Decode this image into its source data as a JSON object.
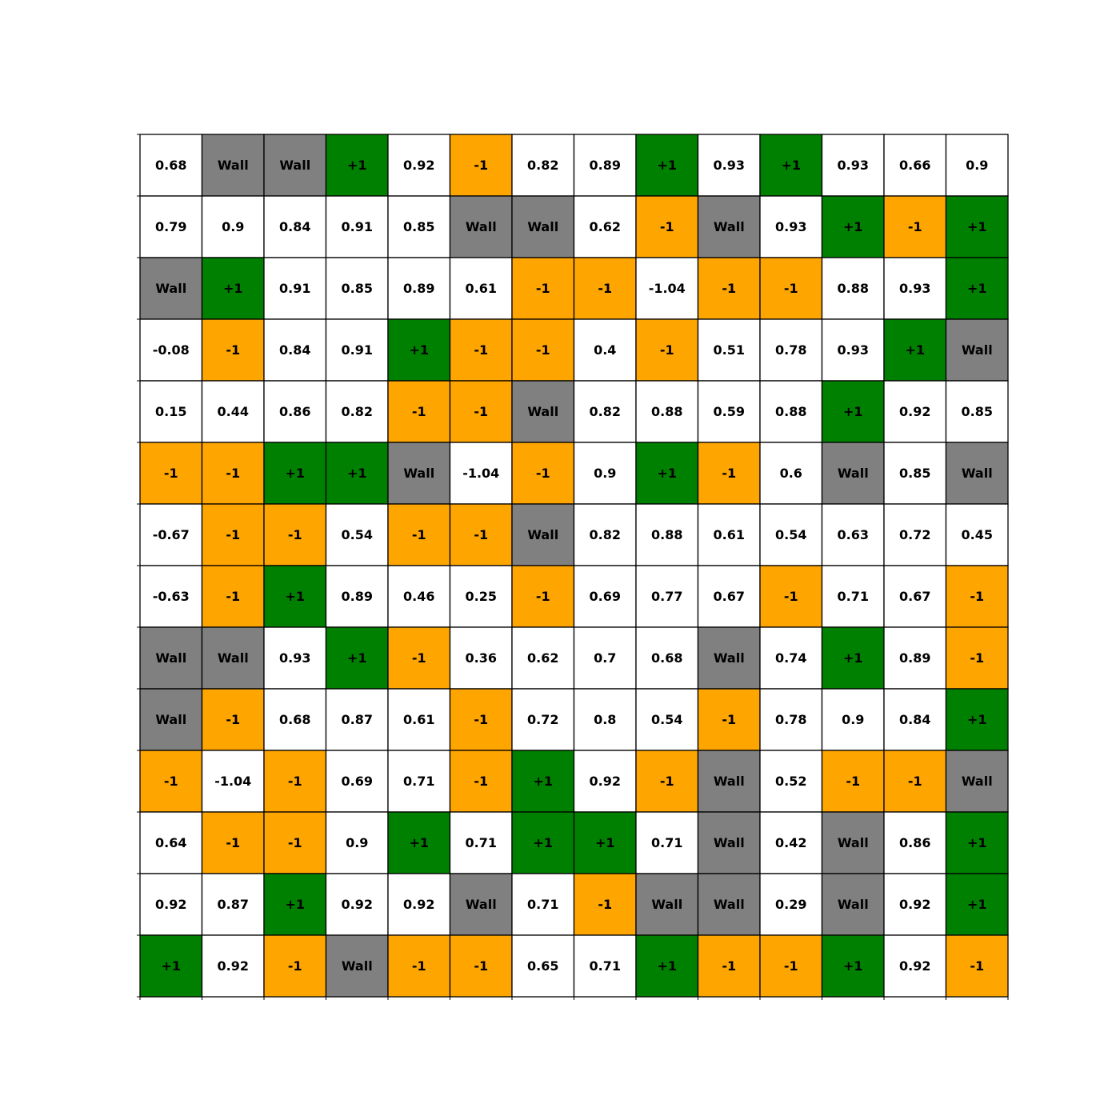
{
  "chart_data": {
    "type": "table",
    "colors": {
      "value": "#ffffff",
      "wall": "#808080",
      "goal": "#008000",
      "penalty": "#ffa500",
      "grid_line": "#000000"
    },
    "cells": [
      [
        "0.68",
        "Wall",
        "Wall",
        "+1",
        "0.92",
        "-1",
        "0.82",
        "0.89",
        "+1",
        "0.93",
        "+1",
        "0.93",
        "0.66",
        "0.9"
      ],
      [
        "0.79",
        "0.9",
        "0.84",
        "0.91",
        "0.85",
        "Wall",
        "Wall",
        "0.62",
        "-1",
        "Wall",
        "0.93",
        "+1",
        "-1",
        "+1"
      ],
      [
        "Wall",
        "+1",
        "0.91",
        "0.85",
        "0.89",
        "0.61",
        "-1",
        "-1",
        "-1.04",
        "-1",
        "-1",
        "0.88",
        "0.93",
        "+1"
      ],
      [
        "-0.08",
        "-1",
        "0.84",
        "0.91",
        "+1",
        "-1",
        "-1",
        "0.4",
        "-1",
        "0.51",
        "0.78",
        "0.93",
        "+1",
        "Wall"
      ],
      [
        "0.15",
        "0.44",
        "0.86",
        "0.82",
        "-1",
        "-1",
        "Wall",
        "0.82",
        "0.88",
        "0.59",
        "0.88",
        "+1",
        "0.92",
        "0.85"
      ],
      [
        "-1",
        "-1",
        "+1",
        "+1",
        "Wall",
        "-1.04",
        "-1",
        "0.9",
        "+1",
        "-1",
        "0.6",
        "Wall",
        "0.85",
        "Wall"
      ],
      [
        "-0.67",
        "-1",
        "-1",
        "0.54",
        "-1",
        "-1",
        "Wall",
        "0.82",
        "0.88",
        "0.61",
        "0.54",
        "0.63",
        "0.72",
        "0.45"
      ],
      [
        "-0.63",
        "-1",
        "+1",
        "0.89",
        "0.46",
        "0.25",
        "-1",
        "0.69",
        "0.77",
        "0.67",
        "-1",
        "0.71",
        "0.67",
        "-1"
      ],
      [
        "Wall",
        "Wall",
        "0.93",
        "+1",
        "-1",
        "0.36",
        "0.62",
        "0.7",
        "0.68",
        "Wall",
        "0.74",
        "+1",
        "0.89",
        "-1"
      ],
      [
        "Wall",
        "-1",
        "0.68",
        "0.87",
        "0.61",
        "-1",
        "0.72",
        "0.8",
        "0.54",
        "-1",
        "0.78",
        "0.9",
        "0.84",
        "+1"
      ],
      [
        "-1",
        "-1.04",
        "-1",
        "0.69",
        "0.71",
        "-1",
        "+1",
        "0.92",
        "-1",
        "Wall",
        "0.52",
        "-1",
        "-1",
        "Wall"
      ],
      [
        "0.64",
        "-1",
        "-1",
        "0.9",
        "+1",
        "0.71",
        "+1",
        "+1",
        "0.71",
        "Wall",
        "0.42",
        "Wall",
        "0.86",
        "+1"
      ],
      [
        "0.92",
        "0.87",
        "+1",
        "0.92",
        "0.92",
        "Wall",
        "0.71",
        "-1",
        "Wall",
        "Wall",
        "0.29",
        "Wall",
        "0.92",
        "+1"
      ],
      [
        "+1",
        "0.92",
        "-1",
        "Wall",
        "-1",
        "-1",
        "0.65",
        "0.71",
        "+1",
        "-1",
        "-1",
        "+1",
        "0.92",
        "-1"
      ]
    ],
    "cell_kinds": [
      [
        "value",
        "wall",
        "wall",
        "goal",
        "value",
        "penalty",
        "value",
        "value",
        "goal",
        "value",
        "goal",
        "value",
        "value",
        "value"
      ],
      [
        "value",
        "value",
        "value",
        "value",
        "value",
        "wall",
        "wall",
        "value",
        "penalty",
        "wall",
        "value",
        "goal",
        "penalty",
        "goal"
      ],
      [
        "wall",
        "goal",
        "value",
        "value",
        "value",
        "value",
        "penalty",
        "penalty",
        "value",
        "penalty",
        "penalty",
        "value",
        "value",
        "goal"
      ],
      [
        "value",
        "penalty",
        "value",
        "value",
        "goal",
        "penalty",
        "penalty",
        "value",
        "penalty",
        "value",
        "value",
        "value",
        "goal",
        "wall"
      ],
      [
        "value",
        "value",
        "value",
        "value",
        "penalty",
        "penalty",
        "wall",
        "value",
        "value",
        "value",
        "value",
        "goal",
        "value",
        "value"
      ],
      [
        "penalty",
        "penalty",
        "goal",
        "goal",
        "wall",
        "value",
        "penalty",
        "value",
        "goal",
        "penalty",
        "value",
        "wall",
        "value",
        "wall"
      ],
      [
        "value",
        "penalty",
        "penalty",
        "value",
        "penalty",
        "penalty",
        "wall",
        "value",
        "value",
        "value",
        "value",
        "value",
        "value",
        "value"
      ],
      [
        "value",
        "penalty",
        "goal",
        "value",
        "value",
        "value",
        "penalty",
        "value",
        "value",
        "value",
        "penalty",
        "value",
        "value",
        "penalty"
      ],
      [
        "wall",
        "wall",
        "value",
        "goal",
        "penalty",
        "value",
        "value",
        "value",
        "value",
        "wall",
        "value",
        "goal",
        "value",
        "penalty"
      ],
      [
        "wall",
        "penalty",
        "value",
        "value",
        "value",
        "penalty",
        "value",
        "value",
        "value",
        "penalty",
        "value",
        "value",
        "value",
        "goal"
      ],
      [
        "penalty",
        "value",
        "penalty",
        "value",
        "value",
        "penalty",
        "goal",
        "value",
        "penalty",
        "wall",
        "value",
        "penalty",
        "penalty",
        "wall"
      ],
      [
        "value",
        "penalty",
        "penalty",
        "value",
        "goal",
        "value",
        "goal",
        "goal",
        "value",
        "wall",
        "value",
        "wall",
        "value",
        "goal"
      ],
      [
        "value",
        "value",
        "goal",
        "value",
        "value",
        "wall",
        "value",
        "penalty",
        "wall",
        "wall",
        "value",
        "wall",
        "value",
        "goal"
      ],
      [
        "goal",
        "value",
        "penalty",
        "wall",
        "penalty",
        "penalty",
        "value",
        "value",
        "goal",
        "penalty",
        "penalty",
        "goal",
        "value",
        "penalty"
      ]
    ]
  }
}
